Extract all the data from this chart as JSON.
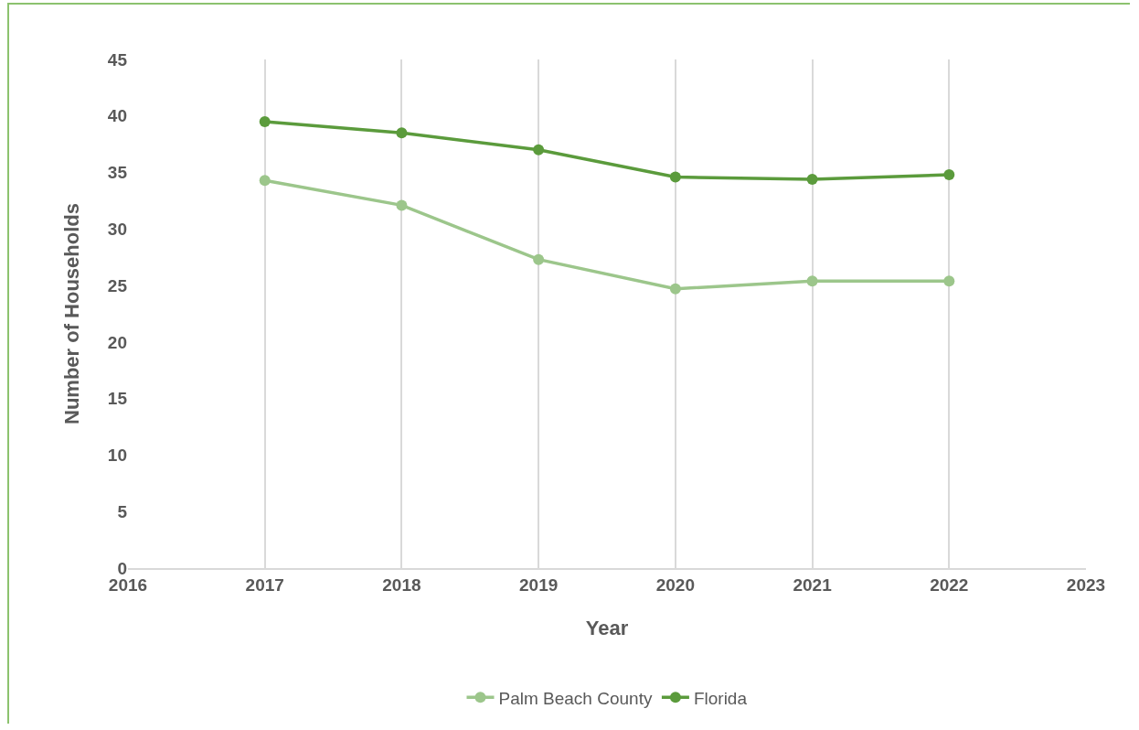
{
  "chart_data": {
    "type": "line",
    "xlabel": "Year",
    "ylabel": "Number of Households",
    "x": [
      2017,
      2018,
      2019,
      2020,
      2021,
      2022
    ],
    "series": [
      {
        "name": "Palm Beach County",
        "color": "#9cc68b",
        "values": [
          34.3,
          32.1,
          27.3,
          24.7,
          25.4,
          25.4
        ]
      },
      {
        "name": "Florida",
        "color": "#5b9b3c",
        "values": [
          39.5,
          38.5,
          37.0,
          34.6,
          34.4,
          34.8
        ]
      }
    ],
    "xlim": [
      2016,
      2023
    ],
    "xticks": [
      2016,
      2017,
      2018,
      2019,
      2020,
      2021,
      2022,
      2023
    ],
    "ylim": [
      0,
      45
    ],
    "yticks": [
      0,
      5,
      10,
      15,
      20,
      25,
      30,
      35,
      40,
      45
    ],
    "grid": "x",
    "legend": "bottom",
    "marker": "circle",
    "line_style": "solid"
  }
}
